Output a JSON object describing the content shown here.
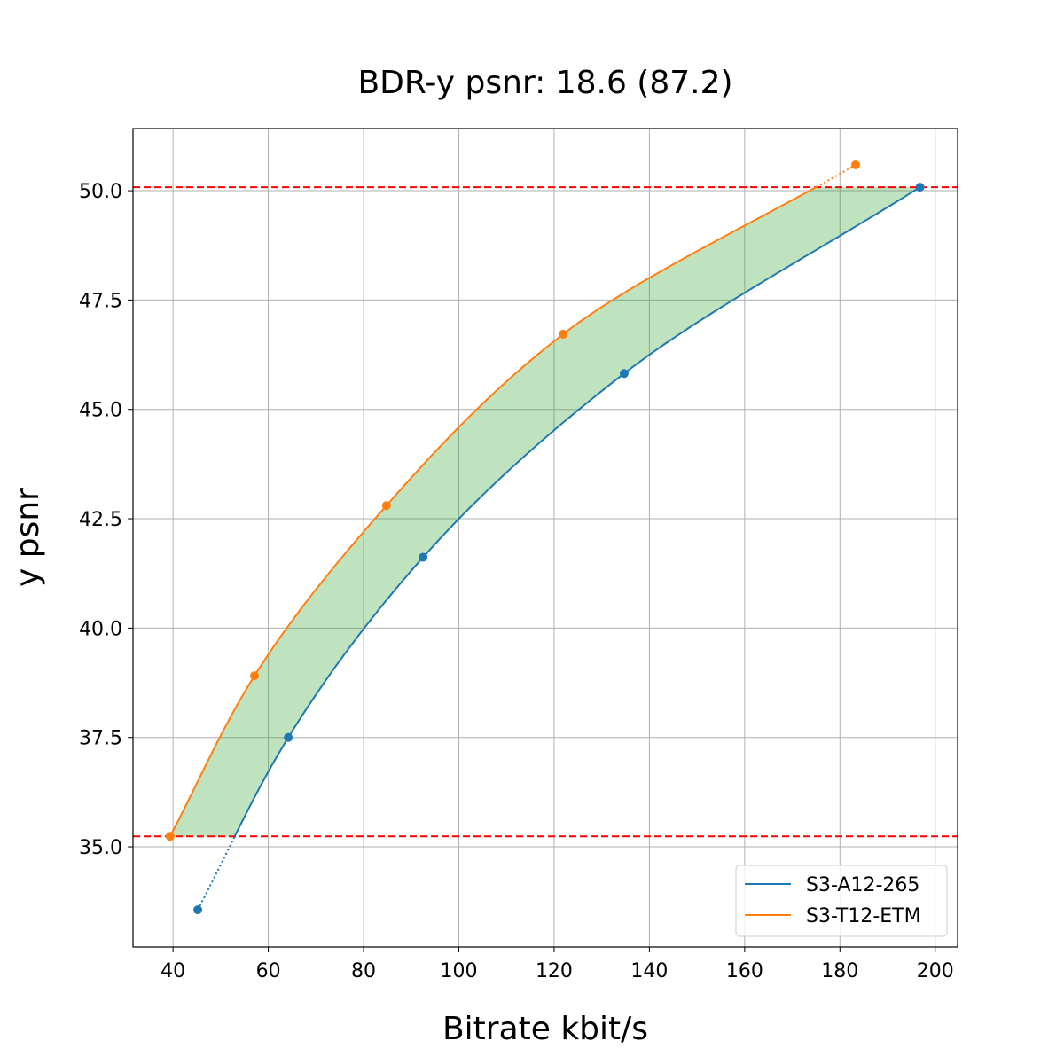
{
  "chart_data": {
    "type": "line",
    "title": "BDR-y psnr: 18.6 (87.2)",
    "xlabel": "Bitrate kbit/s",
    "ylabel": "y psnr",
    "xlim": [
      31.6,
      204.7
    ],
    "ylim": [
      32.71,
      51.42
    ],
    "xticks": [
      40,
      60,
      80,
      100,
      120,
      140,
      160,
      180,
      200
    ],
    "yticks": [
      "35.0",
      "37.5",
      "40.0",
      "42.5",
      "45.0",
      "47.5",
      "50.0"
    ],
    "grid": true,
    "legend_position": "lower right",
    "series": [
      {
        "name": "S3-A12-265",
        "color": "#1f77b4",
        "x": [
          45.2,
          64.2,
          92.5,
          134.7,
          196.8
        ],
        "y": [
          33.56,
          37.5,
          41.62,
          45.82,
          50.08
        ]
      },
      {
        "name": "S3-T12-ETM",
        "color": "#ff7f0e",
        "x": [
          39.4,
          57.1,
          84.8,
          121.9,
          183.3
        ],
        "y": [
          35.24,
          38.91,
          42.8,
          46.72,
          50.59
        ]
      }
    ],
    "reference_lines": {
      "y": [
        35.24,
        50.08
      ],
      "color": "#ff0000",
      "style": "dashed"
    },
    "fill_between": {
      "color": "#2ca02c",
      "opacity": 0.3,
      "y_range": [
        35.24,
        50.08
      ]
    }
  }
}
